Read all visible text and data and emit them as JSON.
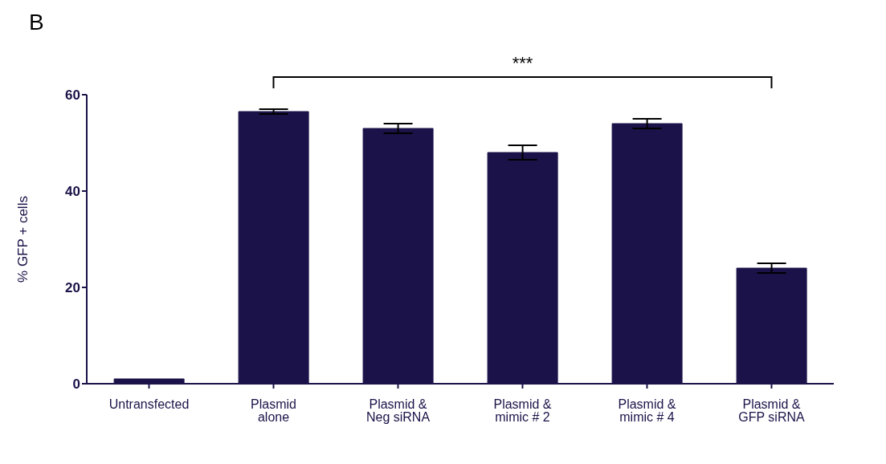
{
  "chart_data": {
    "type": "bar",
    "title": "B",
    "ylabel": "% GFP + cells",
    "categories": [
      "Untransfected",
      "Plasmid alone",
      "Plasmid & Neg siRNA",
      "Plasmid & mimic # 2",
      "Plasmid & mimic # 4",
      "Plasmid & GFP siRNA"
    ],
    "values": [
      1,
      56.5,
      53,
      48,
      54,
      24
    ],
    "errors": [
      null,
      0.5,
      1,
      1.5,
      1,
      1
    ],
    "color": "#1a1248",
    "ylim": [
      0,
      60
    ],
    "yticks": [
      0,
      20,
      40,
      60
    ],
    "annotations": [
      "***"
    ]
  }
}
